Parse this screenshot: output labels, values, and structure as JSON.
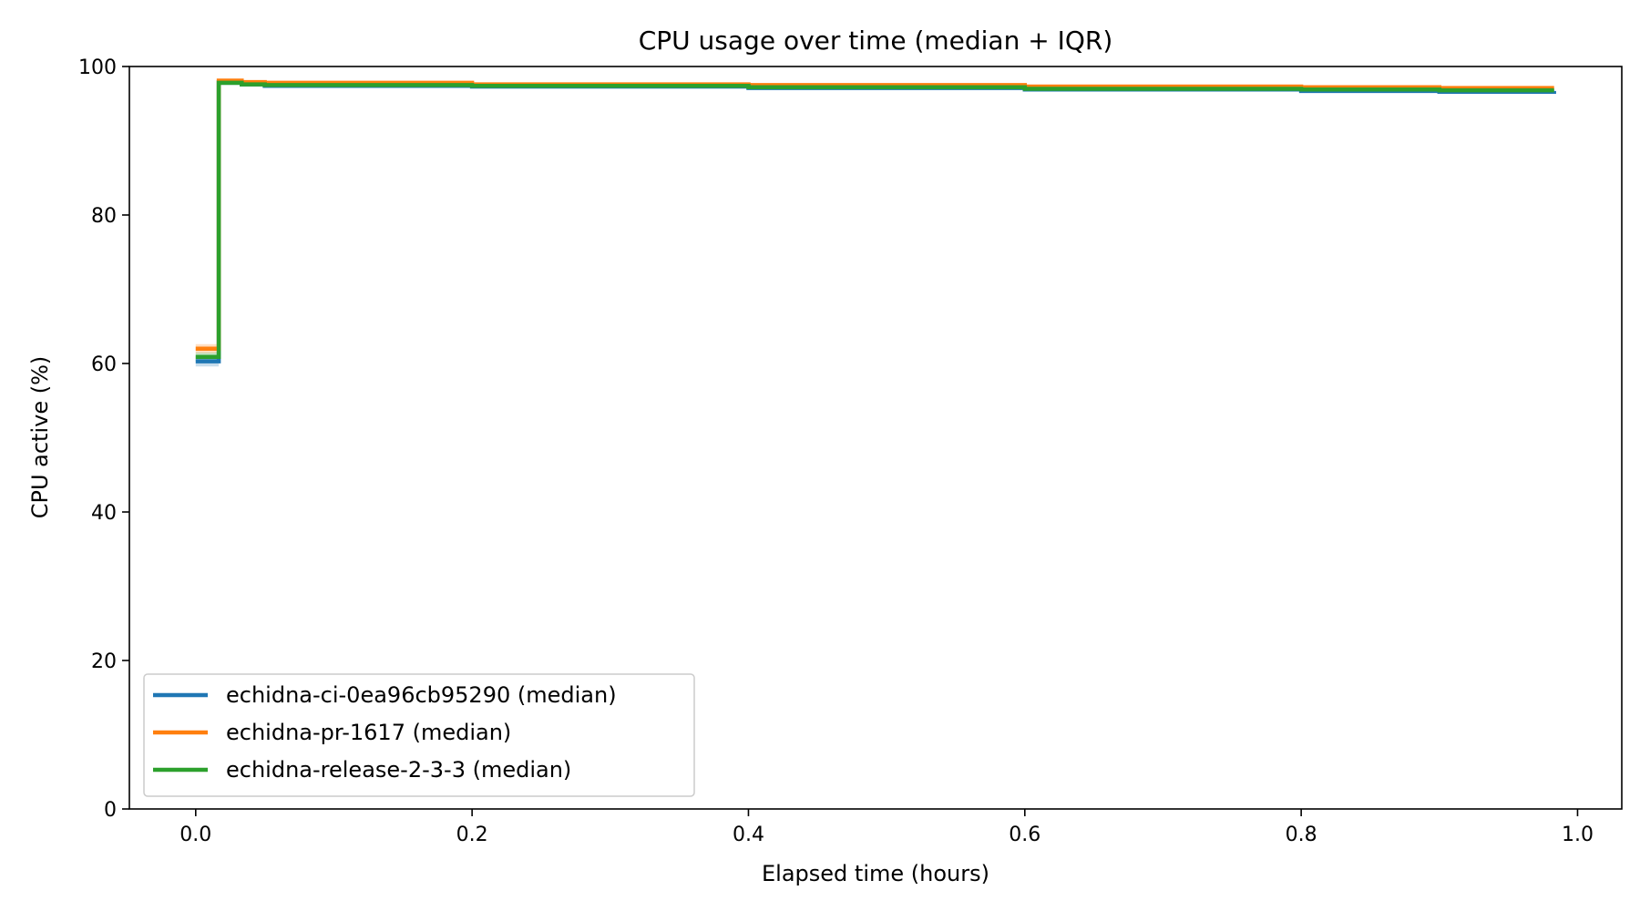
{
  "chart_data": {
    "type": "line",
    "title": "CPU usage over time (median + IQR)",
    "xlabel": "Elapsed time (hours)",
    "ylabel": "CPU active (%)",
    "xlim": [
      -0.048,
      1.032
    ],
    "ylim": [
      0,
      100
    ],
    "xticks": [
      0.0,
      0.2,
      0.4,
      0.6,
      0.8,
      1.0
    ],
    "xtick_labels": [
      "0.0",
      "0.2",
      "0.4",
      "0.6",
      "0.8",
      "1.0"
    ],
    "yticks": [
      0,
      20,
      40,
      60,
      80,
      100
    ],
    "ytick_labels": [
      "0",
      "20",
      "40",
      "60",
      "80",
      "100"
    ],
    "grid": false,
    "legend_position": "lower-left",
    "series": [
      {
        "name": "echidna-ci-0ea96cb95290 (median)",
        "color": "#1f77b4",
        "step": true,
        "x": [
          0.0,
          0.0167,
          0.0333,
          0.05,
          0.2,
          0.4,
          0.6,
          0.8,
          0.9,
          0.983
        ],
        "y": [
          60.3,
          97.9,
          97.6,
          97.4,
          97.3,
          97.1,
          96.9,
          96.7,
          96.6,
          96.7
        ],
        "iqr_low": [
          59.6,
          97.5,
          97.3,
          97.2,
          97.1,
          96.9,
          96.7,
          96.5,
          96.4,
          96.5
        ],
        "iqr_high": [
          61.0,
          98.1,
          97.8,
          97.6,
          97.5,
          97.3,
          97.1,
          96.9,
          96.8,
          96.9
        ]
      },
      {
        "name": "echidna-pr-1617 (median)",
        "color": "#ff7f0e",
        "step": true,
        "x": [
          0.0,
          0.0167,
          0.0333,
          0.05,
          0.2,
          0.4,
          0.6,
          0.8,
          0.9,
          0.983
        ],
        "y": [
          62.0,
          98.1,
          97.9,
          97.8,
          97.6,
          97.5,
          97.3,
          97.2,
          97.1,
          97.1
        ],
        "iqr_low": [
          61.4,
          97.8,
          97.6,
          97.5,
          97.4,
          97.3,
          97.1,
          97.0,
          96.9,
          96.9
        ],
        "iqr_high": [
          62.6,
          98.3,
          98.1,
          98.0,
          97.8,
          97.7,
          97.5,
          97.4,
          97.3,
          97.3
        ]
      },
      {
        "name": "echidna-release-2-3-3 (median)",
        "color": "#2ca02c",
        "step": true,
        "x": [
          0.0,
          0.0167,
          0.0333,
          0.05,
          0.2,
          0.4,
          0.6,
          0.8,
          0.9,
          0.983
        ],
        "y": [
          60.9,
          97.8,
          97.6,
          97.5,
          97.4,
          97.2,
          97.0,
          96.9,
          96.8,
          96.8
        ],
        "iqr_low": [
          60.3,
          97.5,
          97.4,
          97.3,
          97.2,
          97.0,
          96.8,
          96.7,
          96.6,
          96.6
        ],
        "iqr_high": [
          61.5,
          98.0,
          97.8,
          97.7,
          97.6,
          97.4,
          97.2,
          97.1,
          97.0,
          97.0
        ]
      }
    ]
  }
}
